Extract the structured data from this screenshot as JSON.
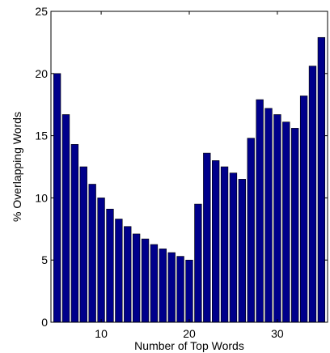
{
  "chart_data": {
    "type": "bar",
    "title": "",
    "xlabel": "Number of Top Words",
    "ylabel": "% Overlapping Words",
    "xlim": [
      4.3,
      35.7
    ],
    "ylim": [
      0,
      25
    ],
    "xticks": [
      10,
      20,
      30
    ],
    "yticks": [
      0,
      5,
      10,
      15,
      20,
      25
    ],
    "grid": false,
    "bar_color": "#00008b",
    "x": [
      5,
      6,
      7,
      8,
      9,
      10,
      11,
      12,
      13,
      14,
      15,
      16,
      17,
      18,
      19,
      20,
      21,
      22,
      23,
      24,
      25,
      26,
      27,
      28,
      29,
      30,
      31,
      32,
      33,
      34,
      35
    ],
    "values": [
      20.0,
      16.7,
      14.3,
      12.5,
      11.1,
      10.0,
      9.1,
      8.3,
      7.7,
      7.1,
      6.7,
      6.25,
      5.9,
      5.6,
      5.3,
      5.0,
      9.5,
      13.6,
      13.0,
      12.5,
      12.0,
      11.5,
      14.8,
      17.9,
      17.2,
      16.7,
      16.1,
      15.6,
      18.2,
      20.6,
      22.9
    ]
  }
}
